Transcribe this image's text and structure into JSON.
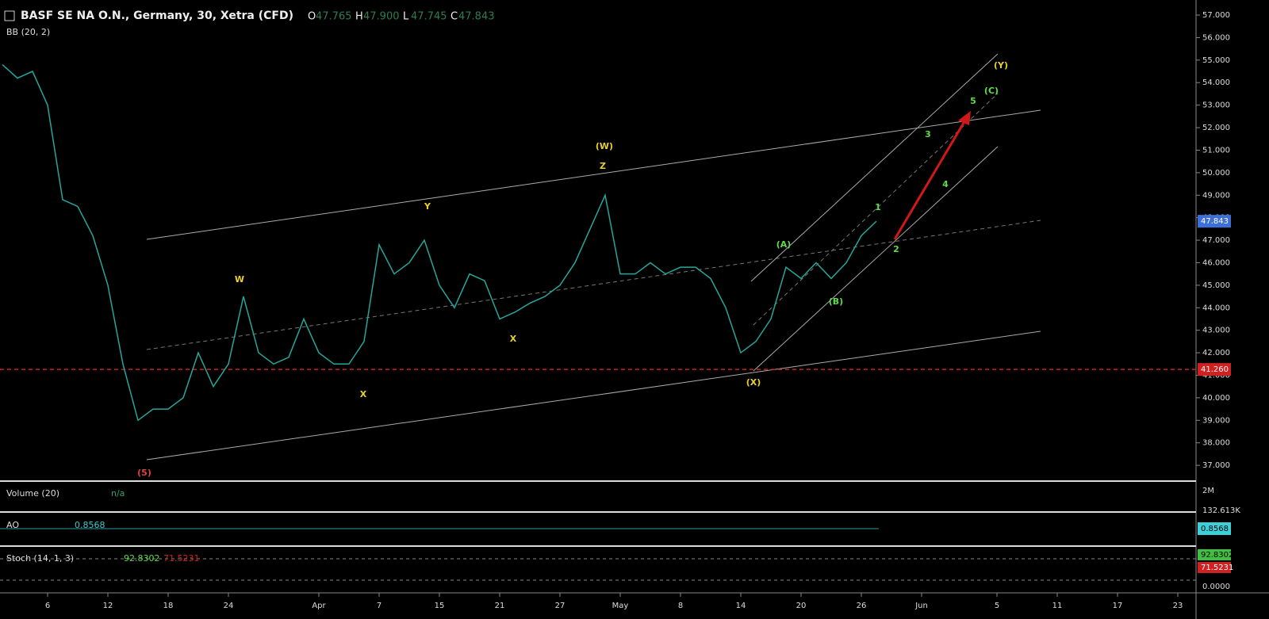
{
  "chart_data": {
    "type": "line",
    "title": "BASF SE NA O.N., Germany, 30, Xetra (CFD)",
    "ohlc": [
      {
        "label": "O",
        "value": "47.765"
      },
      {
        "label": "H",
        "value": "47.900"
      },
      {
        "label": "L",
        "value": "47.745"
      },
      {
        "label": "C",
        "value": "47.843"
      }
    ],
    "categories": [
      null,
      null,
      null,
      "6",
      null,
      null,
      null,
      "12",
      null,
      null,
      null,
      "18",
      null,
      null,
      null,
      "24",
      null,
      null,
      null,
      null,
      null,
      "Apr",
      null,
      null,
      null,
      "7",
      null,
      null,
      null,
      "15",
      null,
      null,
      null,
      "21",
      null,
      null,
      null,
      "27",
      null,
      null,
      null,
      "May",
      null,
      null,
      null,
      "8",
      null,
      null,
      null,
      "14",
      null,
      null,
      null,
      "20",
      null,
      null,
      null,
      "26",
      null,
      null,
      null,
      "Jun",
      null,
      null,
      null,
      null,
      "5",
      null,
      null,
      null,
      "11",
      null,
      null,
      null,
      "17",
      null,
      null,
      null,
      "23",
      null
    ],
    "values": [
      54.8,
      54.2,
      54.5,
      53.0,
      48.8,
      48.5,
      47.2,
      45.0,
      41.5,
      39.0,
      39.5,
      39.5,
      40.0,
      42.0,
      40.5,
      41.5,
      44.5,
      42.0,
      41.5,
      41.8,
      43.5,
      42.0,
      41.5,
      41.5,
      42.5,
      46.8,
      45.5,
      46.0,
      47.0,
      45.0,
      44.0,
      45.5,
      45.2,
      43.5,
      43.8,
      44.2,
      44.5,
      45.0,
      46.0,
      47.5,
      49.0,
      45.5,
      45.5,
      46.0,
      45.5,
      45.8,
      45.8,
      45.3,
      44.0,
      42.0,
      42.5,
      43.5,
      45.8,
      45.3,
      46.0,
      45.3,
      46.0,
      47.2,
      47.843,
      null,
      null,
      null,
      null,
      null,
      null,
      null,
      null,
      null,
      null,
      null,
      null,
      null,
      null,
      null,
      null,
      null,
      null,
      null,
      null,
      null
    ],
    "color": "#26a69a",
    "ylim": [
      36.37,
      57.67
    ],
    "yticks": [
      {
        "value": 37,
        "label": "37.000"
      },
      {
        "value": 38,
        "label": "38.000"
      },
      {
        "value": 39,
        "label": "39.000"
      },
      {
        "value": 40,
        "label": "40.000"
      },
      {
        "value": 41,
        "label": "41.000"
      },
      {
        "value": 42,
        "label": "42.000"
      },
      {
        "value": 43,
        "label": "43.000"
      },
      {
        "value": 44,
        "label": "44.000"
      },
      {
        "value": 45,
        "label": "45.000"
      },
      {
        "value": 46,
        "label": "46.000"
      },
      {
        "value": 47,
        "label": "47.000"
      },
      {
        "value": 48,
        "label": "48.000"
      },
      {
        "value": 49,
        "label": "49.000"
      },
      {
        "value": 50,
        "label": "50.000"
      },
      {
        "value": 51,
        "label": "51.000"
      },
      {
        "value": 52,
        "label": "52.000"
      },
      {
        "value": 53,
        "label": "53.000"
      },
      {
        "value": 54,
        "label": "54.000"
      },
      {
        "value": 55,
        "label": "55.000"
      },
      {
        "value": 56,
        "label": "56.000"
      },
      {
        "value": 57,
        "label": "57.000"
      }
    ],
    "last_price": 47.843,
    "level": {
      "value": 41.26,
      "label": "41.260"
    },
    "annotations": [
      {
        "text": "(5)",
        "color": "#e04040"
      },
      {
        "text": "W",
        "color": "#e8d12c"
      },
      {
        "text": "X",
        "color": "#e8d12c"
      },
      {
        "text": "Y",
        "color": "#e8d12c"
      },
      {
        "text": "X",
        "color": "#e8d12c"
      },
      {
        "text": "Z",
        "color": "#e8d12c"
      },
      {
        "text": "(W)",
        "color": "#e8d12c"
      },
      {
        "text": "(X)",
        "color": "#e8d12c"
      },
      {
        "text": "(A)",
        "color": "#5fdc4a"
      },
      {
        "text": "(B)",
        "color": "#5fdc4a"
      },
      {
        "text": "1",
        "color": "#5fdc4a"
      },
      {
        "text": "2",
        "color": "#5fdc4a"
      },
      {
        "text": "3",
        "color": "#5fdc4a"
      },
      {
        "text": "4",
        "color": "#5fdc4a"
      },
      {
        "text": "5",
        "color": "#5fdc4a"
      },
      {
        "text": "(C)",
        "color": "#5fdc4a"
      },
      {
        "text": "(Y)",
        "color": "#e8d12c"
      }
    ],
    "indicators": [
      {
        "name": "BB (20, 2)"
      },
      {
        "name": "Volume (20)",
        "value": "n/a",
        "scale": [
          "2M",
          "132.613K"
        ]
      },
      {
        "name": "AO",
        "value": "0.8568"
      },
      {
        "name": "Stoch (14, 1, 3)",
        "values": [
          "92.8302",
          "71.5231"
        ],
        "scale": [
          "0.0000"
        ]
      }
    ]
  }
}
